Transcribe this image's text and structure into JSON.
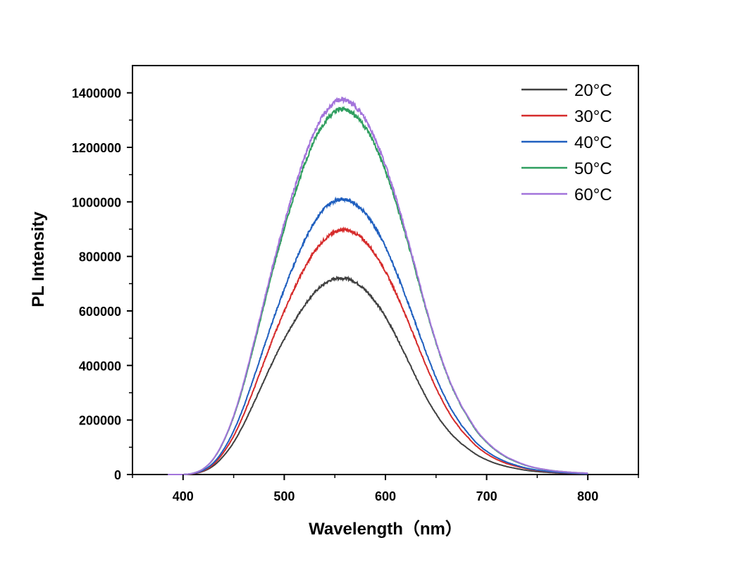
{
  "chart_data": {
    "type": "line",
    "title": "",
    "xlabel": "Wavelength（nm）",
    "ylabel": "PL Intensity",
    "xlim": [
      350,
      850
    ],
    "ylim": [
      0,
      1500000
    ],
    "xticks": [
      400,
      500,
      600,
      700,
      800
    ],
    "xtick_labels": [
      "400",
      "500",
      "600",
      "700",
      "800"
    ],
    "yticks": [
      0,
      200000,
      400000,
      600000,
      800000,
      1000000,
      1200000,
      1400000
    ],
    "ytick_labels": [
      "0",
      "200000",
      "400000",
      "600000",
      "800000",
      "1000000",
      "1200000",
      "1400000"
    ],
    "grid": false,
    "legend_position": "top-right",
    "x": [
      385,
      400,
      410,
      420,
      430,
      440,
      450,
      460,
      470,
      480,
      490,
      500,
      510,
      520,
      530,
      540,
      550,
      557,
      565,
      575,
      585,
      595,
      605,
      615,
      625,
      635,
      645,
      655,
      665,
      675,
      690,
      705,
      720,
      740,
      760,
      780,
      800
    ],
    "series": [
      {
        "name": "20°C",
        "color": "#404040",
        "values": [
          0,
          0,
          3000,
          12000,
          32000,
          68000,
          118000,
          185000,
          263000,
          345000,
          424000,
          496000,
          562000,
          620000,
          668000,
          700000,
          718000,
          720000,
          715000,
          693000,
          657000,
          608000,
          546000,
          474000,
          397000,
          320000,
          253000,
          195000,
          149000,
          113000,
          73000,
          46000,
          29000,
          15000,
          8000,
          4000,
          2000
        ]
      },
      {
        "name": "30°C",
        "color": "#d62b2b",
        "values": [
          0,
          0,
          3000,
          14000,
          38000,
          81000,
          141000,
          221000,
          314000,
          413000,
          510000,
          599000,
          683000,
          756000,
          819000,
          862000,
          889000,
          898000,
          893000,
          872000,
          833000,
          778000,
          708000,
          627000,
          538000,
          446000,
          358000,
          280000,
          214000,
          162000,
          104000,
          65000,
          40000,
          21000,
          11000,
          5000,
          3000
        ]
      },
      {
        "name": "40°C",
        "color": "#1f5fbf",
        "values": [
          0,
          0,
          4000,
          16000,
          43000,
          91000,
          160000,
          250000,
          356000,
          468000,
          578000,
          679000,
          774000,
          857000,
          928000,
          977000,
          1004000,
          1010000,
          1003000,
          978000,
          934000,
          872000,
          793000,
          702000,
          603000,
          500000,
          401000,
          313000,
          240000,
          181000,
          116000,
          73000,
          45000,
          23000,
          12000,
          6000,
          3000
        ]
      },
      {
        "name": "50°C",
        "color": "#2f9e5f",
        "values": [
          0,
          0,
          5000,
          21000,
          57000,
          121000,
          212000,
          332000,
          473000,
          622000,
          768000,
          902000,
          1026000,
          1135000,
          1228000,
          1292000,
          1330000,
          1340000,
          1332000,
          1299000,
          1243000,
          1162000,
          1060000,
          941000,
          811000,
          675000,
          544000,
          426000,
          328000,
          249000,
          160000,
          101000,
          62000,
          32000,
          17000,
          9000,
          5000
        ]
      },
      {
        "name": "60°C",
        "color": "#a374db",
        "values": [
          0,
          0,
          5000,
          21000,
          58000,
          123000,
          216000,
          339000,
          484000,
          636000,
          785000,
          922000,
          1050000,
          1162000,
          1258000,
          1325000,
          1365000,
          1375000,
          1365000,
          1330000,
          1270000,
          1185000,
          1079000,
          956000,
          822000,
          683000,
          549000,
          430000,
          331000,
          252000,
          163000,
          103000,
          64000,
          33000,
          17000,
          9000,
          5000
        ]
      }
    ]
  }
}
